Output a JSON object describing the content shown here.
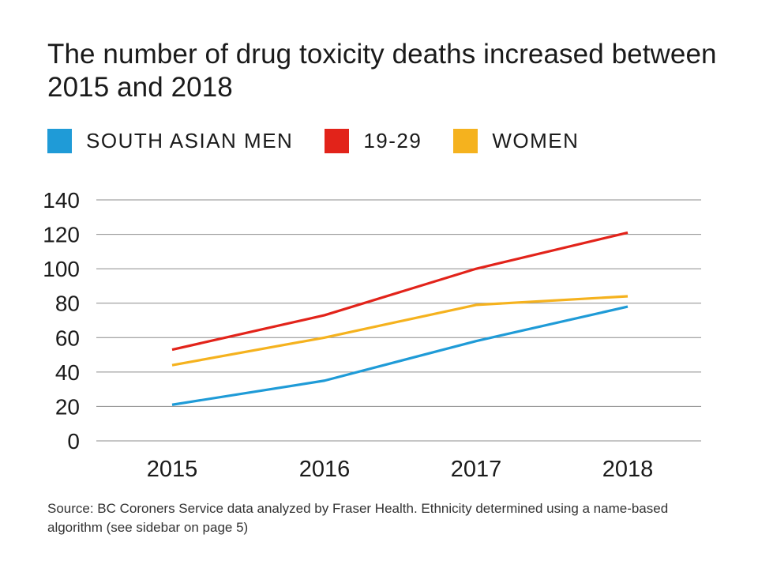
{
  "title": "The number of drug toxicity deaths increased between 2015 and 2018",
  "legend": [
    {
      "label": "SOUTH ASIAN MEN",
      "color": "#1f9bd7"
    },
    {
      "label": "19-29",
      "color": "#e2231a"
    },
    {
      "label": "WOMEN",
      "color": "#f5b21e"
    }
  ],
  "source": "Source: BC Coroners Service data analyzed by Fraser Health. Ethnicity determined using a name-based algorithm (see sidebar on page 5)",
  "chart_data": {
    "type": "line",
    "title": "The number of drug toxicity deaths increased between 2015 and 2018",
    "x": [
      "2015",
      "2016",
      "2017",
      "2018"
    ],
    "xlabel": "",
    "ylabel": "",
    "ylim": [
      0,
      140
    ],
    "yticks": [
      "0",
      "20",
      "40",
      "60",
      "80",
      "100",
      "120",
      "140"
    ],
    "grid": true,
    "legend_position": "top",
    "series": [
      {
        "name": "SOUTH ASIAN MEN",
        "color": "#1f9bd7",
        "values": [
          21,
          35,
          58,
          78
        ]
      },
      {
        "name": "19-29",
        "color": "#e2231a",
        "values": [
          53,
          73,
          100,
          121
        ]
      },
      {
        "name": "WOMEN",
        "color": "#f5b21e",
        "values": [
          44,
          60,
          79,
          84
        ]
      }
    ]
  }
}
